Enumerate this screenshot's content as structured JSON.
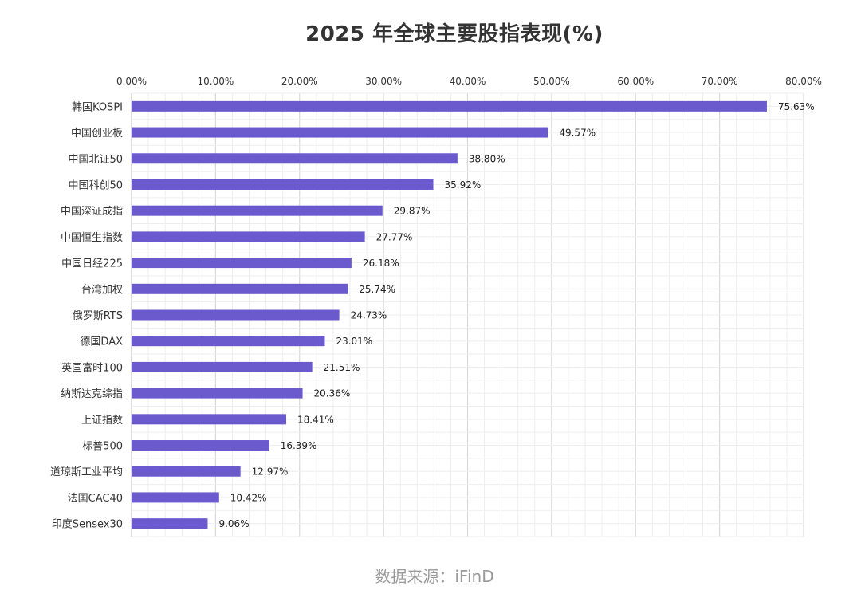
{
  "title": "2025 年全球主要股指表现(%)",
  "source": "数据来源：iFinD",
  "colors": {
    "bar": "#6a5acd",
    "grid_major": "#d9d9d9",
    "grid_minor": "#eeeeee",
    "source_text": "#9a9a9a"
  },
  "chart_data": {
    "type": "bar",
    "orientation": "horizontal",
    "title": "2025 年全球主要股指表现(%)",
    "xlabel": "",
    "ylabel": "",
    "xlim": [
      0,
      80
    ],
    "x_ticks": [
      "0.00%",
      "10.00%",
      "20.00%",
      "30.00%",
      "40.00%",
      "50.00%",
      "60.00%",
      "70.00%",
      "80.00%"
    ],
    "x_tick_values": [
      0,
      10,
      20,
      30,
      40,
      50,
      60,
      70,
      80
    ],
    "x_axis_position": "top",
    "grid": true,
    "legend": "none",
    "categories": [
      "韩国KOSPI",
      "中国创业板",
      "中国北证50",
      "中国科创50",
      "中国深证成指",
      "中国恒生指数",
      "中国日经225",
      "台湾加权",
      "俄罗斯RTS",
      "德国DAX",
      "英国富时100",
      "纳斯达克综指",
      "上证指数",
      "标普500",
      "道琼斯工业平均",
      "法国CAC40",
      "印度Sensex30"
    ],
    "values": [
      75.63,
      49.57,
      38.8,
      35.92,
      29.87,
      27.77,
      26.18,
      25.74,
      24.73,
      23.01,
      21.51,
      20.36,
      18.41,
      16.39,
      12.97,
      10.42,
      9.06
    ],
    "value_labels": [
      "75.63%",
      "49.57%",
      "38.80%",
      "35.92%",
      "29.87%",
      "27.77%",
      "26.18%",
      "25.74%",
      "24.73%",
      "23.01%",
      "21.51%",
      "20.36%",
      "18.41%",
      "16.39%",
      "12.97%",
      "10.42%",
      "9.06%"
    ]
  }
}
